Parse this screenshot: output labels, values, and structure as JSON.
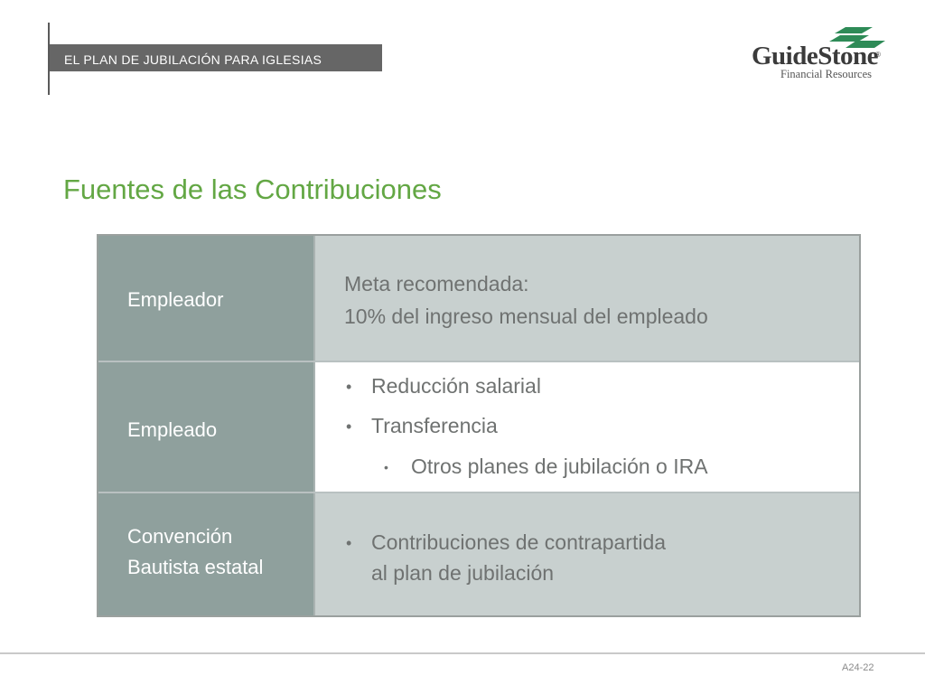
{
  "header": {
    "band_text": "EL PLAN DE JUBILACIÓN PARA IGLESIAS",
    "logo": {
      "name": "GuideStone",
      "registered": "®",
      "subtitle": "Financial Resources",
      "icon": "green-stacked-diamonds-logo-icon",
      "color": "#2e8b57"
    }
  },
  "title": "Fuentes de las Contribuciones",
  "table": {
    "rows": [
      {
        "label": "Empleador",
        "lines": [
          "Meta recomendada:",
          "10% del ingreso mensual del empleado"
        ]
      },
      {
        "label": "Empleado",
        "bullets": [
          "Reducción salarial",
          "Transferencia"
        ],
        "sub_bullets": [
          "Otros planes de jubilación o IRA"
        ]
      },
      {
        "label_lines": [
          "Convención",
          "Bautista estatal"
        ],
        "bullet_lines": [
          "Contribuciones de contrapartida",
          "al plan de jubilación"
        ]
      }
    ]
  },
  "footer": {
    "code": "A24-22"
  },
  "colors": {
    "title_green": "#63a744",
    "label_cell": "#8fa09d",
    "content_cell": "#c8d0cf",
    "header_band": "#666666"
  }
}
